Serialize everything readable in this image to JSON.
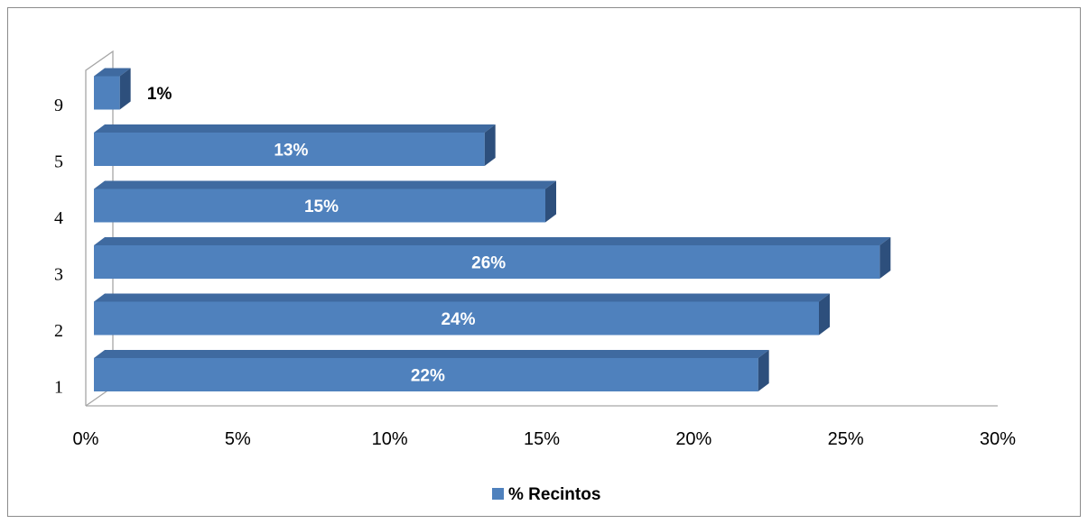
{
  "chart_data": {
    "type": "bar",
    "orientation": "horizontal",
    "three_d": true,
    "categories": [
      "1",
      "2",
      "3",
      "4",
      "5",
      "9"
    ],
    "series": [
      {
        "name": "% Recintos",
        "values": [
          22,
          24,
          26,
          15,
          13,
          1
        ],
        "labels": [
          "22%",
          "24%",
          "26%",
          "15%",
          "13%",
          "1%"
        ],
        "color": "#4f81bd"
      }
    ],
    "xlim": [
      0,
      30
    ],
    "xticks": [
      0,
      5,
      10,
      15,
      20,
      25,
      30
    ],
    "xtick_labels": [
      "0%",
      "5%",
      "10%",
      "15%",
      "20%",
      "25%",
      "30%"
    ],
    "grid": false,
    "legend_position": "bottom"
  },
  "colors": {
    "bar_front": "#4f81bd",
    "bar_top": "#3f6aa0",
    "bar_side": "#2d4f7c",
    "wall": "#a6a6a6",
    "frame": "#8c8c8c"
  }
}
